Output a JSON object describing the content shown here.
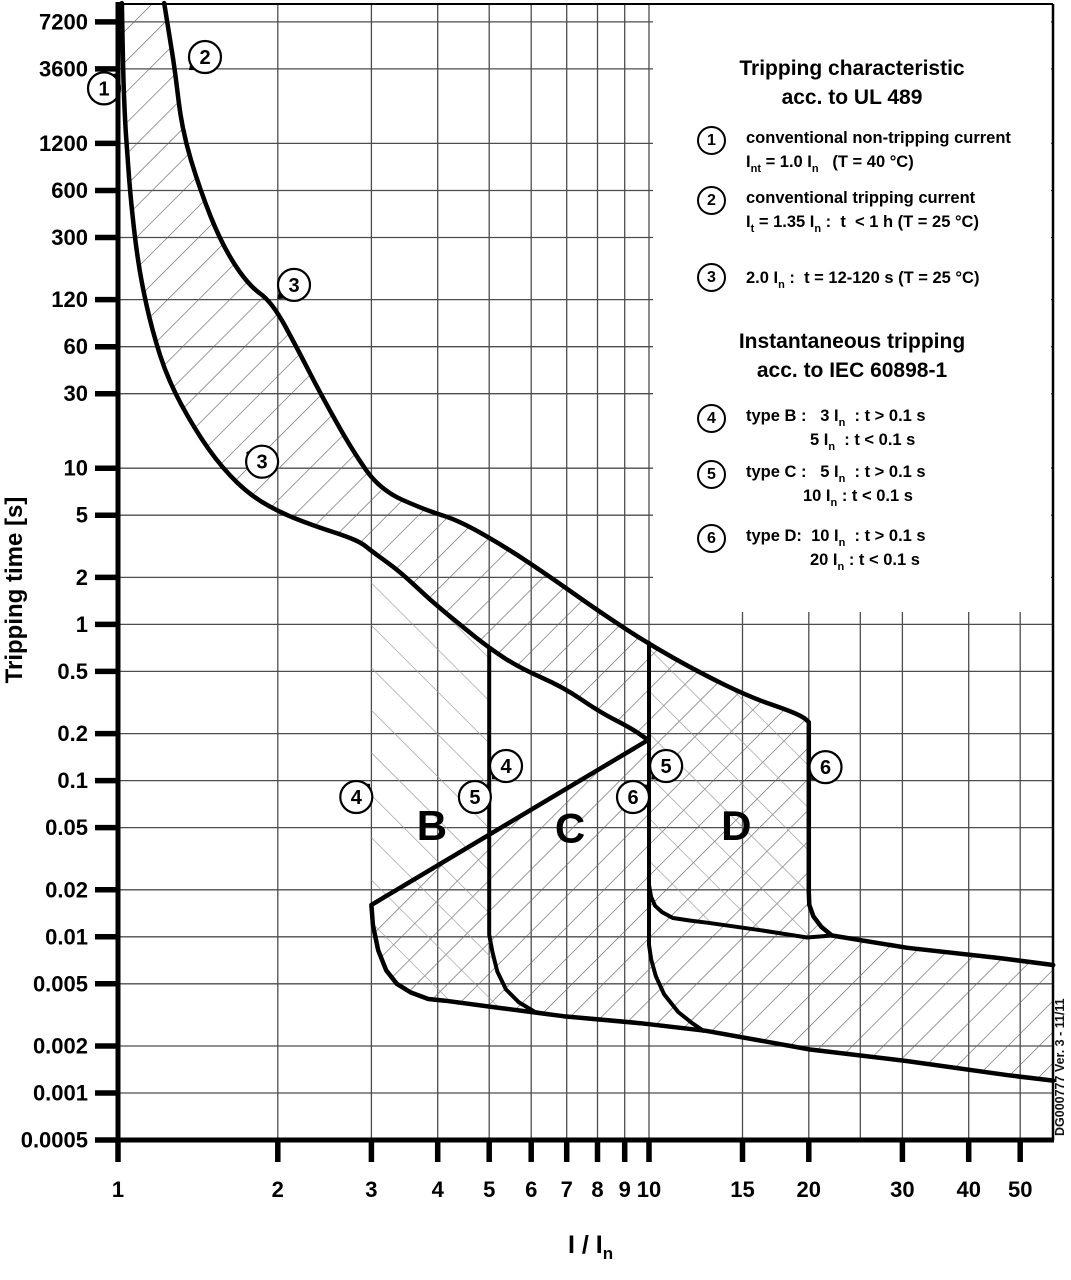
{
  "side_note": "DG000777 Ver. 3 - 11/11",
  "legend": {
    "ul489": {
      "title1": "Tripping characteristic",
      "title2": "acc. to UL 489",
      "items": [
        {
          "num": "1",
          "lines": [
            {
              "segs": [
                {
                  "t": "conventional non-tripping current"
                }
              ]
            },
            {
              "segs": [
                {
                  "t": "I"
                },
                {
                  "s": "nt"
                },
                {
                  "t": " = 1.0 I"
                },
                {
                  "s": "n"
                },
                {
                  "t": "   (T = 40 °C)"
                }
              ]
            }
          ]
        },
        {
          "num": "2",
          "lines": [
            {
              "segs": [
                {
                  "t": "conventional tripping current"
                }
              ]
            },
            {
              "segs": [
                {
                  "t": "I"
                },
                {
                  "s": "t"
                },
                {
                  "t": " = 1.35 I"
                },
                {
                  "s": "n"
                },
                {
                  "t": " :  t  < 1 h (T = 25 °C)"
                }
              ]
            }
          ]
        },
        {
          "num": "3",
          "lines": [
            {
              "segs": [
                {
                  "t": "2.0 I"
                },
                {
                  "s": "n"
                },
                {
                  "t": " :  t = 12-120 s (T = 25 °C)"
                }
              ]
            }
          ]
        }
      ]
    },
    "iec": {
      "title1": "Instantaneous tripping",
      "title2": "acc. to IEC 60898-1",
      "items": [
        {
          "num": "4",
          "lines": [
            {
              "segs": [
                {
                  "t": "type B :   3 I"
                },
                {
                  "s": "n"
                },
                {
                  "t": "  : t > 0.1 s"
                }
              ]
            },
            {
              "pad": 64,
              "segs": [
                {
                  "t": "5 I"
                },
                {
                  "s": "n"
                },
                {
                  "t": "  : t < 0.1 s"
                }
              ]
            }
          ]
        },
        {
          "num": "5",
          "lines": [
            {
              "segs": [
                {
                  "t": "type C :   5 I"
                },
                {
                  "s": "n"
                },
                {
                  "t": "  : t > 0.1 s"
                }
              ]
            },
            {
              "pad": 57,
              "segs": [
                {
                  "t": "10 I"
                },
                {
                  "s": "n"
                },
                {
                  "t": " : t < 0.1 s"
                }
              ]
            }
          ]
        },
        {
          "num": "6",
          "lines": [
            {
              "segs": [
                {
                  "t": "type D:  10 I"
                },
                {
                  "s": "n"
                },
                {
                  "t": "  : t > 0.1 s"
                }
              ]
            },
            {
              "pad": 64,
              "segs": [
                {
                  "t": "20 I"
                },
                {
                  "s": "n"
                },
                {
                  "t": " : t < 0.1 s"
                }
              ]
            }
          ]
        }
      ]
    }
  },
  "chart_data": {
    "type": "line",
    "title": "Tripping characteristic acc. to UL 489 / Instantaneous tripping acc. to IEC 60898-1",
    "xlabel": "I / I",
    "xlabel_sub": "n",
    "ylabel": "Tripping time [s]",
    "x_scale": "log",
    "y_scale": "log",
    "x_range": [
      1,
      57.7
    ],
    "y_range": [
      0.0005,
      9500
    ],
    "x_ticks": [
      1,
      2,
      3,
      4,
      5,
      6,
      7,
      8,
      9,
      10,
      15,
      20,
      30,
      40,
      50
    ],
    "x_gridlines": [
      2,
      3,
      4,
      5,
      6,
      7,
      8,
      9,
      10,
      15,
      20,
      25,
      30,
      40,
      50
    ],
    "y_ticks": [
      7200,
      3600,
      1200,
      600,
      300,
      120,
      60,
      30,
      10,
      5,
      2,
      1,
      0.5,
      0.2,
      0.1,
      0.05,
      0.02,
      0.01,
      0.005,
      0.002,
      0.001,
      0.0005
    ],
    "colors": {
      "curve": "#000000",
      "grid": "#4d4d4d",
      "hatch_main": "#666666",
      "hatch_overlay": "#999999"
    },
    "series": [
      {
        "name": "thermal-lower-limit",
        "smooth": true,
        "width": 4.5,
        "points": [
          [
            1.017,
            9500
          ],
          [
            1.022,
            3540
          ],
          [
            1.031,
            1690
          ],
          [
            1.04,
            1090
          ],
          [
            1.053,
            604
          ],
          [
            1.077,
            289
          ],
          [
            1.105,
            160
          ],
          [
            1.159,
            76.8
          ],
          [
            1.242,
            36.7
          ],
          [
            1.397,
            17.6
          ],
          [
            1.571,
            10.0
          ],
          [
            1.789,
            6.55
          ],
          [
            2.065,
            5.02
          ],
          [
            2.402,
            4.15
          ],
          [
            2.68,
            3.68
          ],
          [
            2.879,
            3.32
          ],
          [
            3.0,
            2.95
          ],
          [
            3.404,
            2.17
          ],
          [
            3.867,
            1.434
          ],
          [
            4.412,
            0.992
          ],
          [
            5.0,
            0.705
          ],
          [
            5.72,
            0.524
          ],
          [
            6.9,
            0.396
          ],
          [
            8.08,
            0.274
          ],
          [
            9.25,
            0.217
          ],
          [
            9.96,
            0.182
          ]
        ]
      },
      {
        "name": "thermal-upper-limit",
        "smooth": true,
        "width": 4.5,
        "points": [
          [
            1.222,
            9500
          ],
          [
            1.253,
            5510
          ],
          [
            1.28,
            3540
          ],
          [
            1.32,
            1460
          ],
          [
            1.427,
            604
          ],
          [
            1.571,
            268
          ],
          [
            1.757,
            149
          ],
          [
            1.95,
            116
          ],
          [
            2.184,
            57.1
          ],
          [
            2.402,
            30.3
          ],
          [
            2.757,
            13.1
          ],
          [
            3.116,
            7.25
          ],
          [
            3.79,
            5.4
          ],
          [
            4.412,
            4.59
          ],
          [
            5.48,
            2.99
          ],
          [
            6.52,
            2.01
          ],
          [
            8.08,
            1.2
          ],
          [
            9.92,
            0.76
          ],
          [
            12.48,
            0.489
          ],
          [
            15.49,
            0.343
          ],
          [
            18.22,
            0.283
          ],
          [
            19.5,
            0.256
          ],
          [
            20.0,
            0.237
          ]
        ]
      },
      {
        "name": "type-B-3In-boundary-and-floor",
        "smooth": false,
        "width": 4.5,
        "points": [
          [
            3.0,
            2.95
          ],
          [
            3.0,
            0.016
          ],
          [
            3.02,
            0.0119
          ],
          [
            3.09,
            0.0082
          ],
          [
            3.2,
            0.0061
          ],
          [
            3.35,
            0.005
          ],
          [
            3.56,
            0.0044
          ],
          [
            3.84,
            0.004
          ],
          [
            4.13,
            0.0039
          ],
          [
            5.24,
            0.0035
          ],
          [
            6.9,
            0.0031
          ],
          [
            9.63,
            0.0028
          ],
          [
            12.8,
            0.0025
          ],
          [
            20.1,
            0.0019
          ],
          [
            30.65,
            0.0016
          ],
          [
            47.4,
            0.0013
          ],
          [
            57.7,
            0.0012
          ]
        ]
      },
      {
        "name": "type-C-5In-boundary",
        "smooth": false,
        "width": 4,
        "points": [
          [
            5.0,
            0.705
          ],
          [
            5.0,
            0.0103
          ],
          [
            5.07,
            0.008
          ],
          [
            5.18,
            0.006
          ],
          [
            5.38,
            0.0046
          ],
          [
            5.69,
            0.0038
          ],
          [
            6.1,
            0.0033
          ],
          [
            6.43,
            0.0032
          ]
        ]
      },
      {
        "name": "type-D-10In-boundary",
        "smooth": false,
        "width": 4,
        "points": [
          [
            10.0,
            0.76
          ],
          [
            10.0,
            0.0089
          ],
          [
            10.09,
            0.0072
          ],
          [
            10.3,
            0.0056
          ],
          [
            10.67,
            0.0043
          ],
          [
            11.35,
            0.0033
          ],
          [
            12.06,
            0.0028
          ],
          [
            12.66,
            0.0025
          ]
        ]
      },
      {
        "name": "type-C-10In-instantaneous-limit",
        "smooth": false,
        "width": 4,
        "points": [
          [
            10.0,
            0.0215
          ],
          [
            10.09,
            0.018
          ],
          [
            10.27,
            0.0158
          ],
          [
            10.58,
            0.0144
          ],
          [
            11.09,
            0.0132
          ],
          [
            11.97,
            0.0127
          ],
          [
            12.92,
            0.0123
          ],
          [
            16.27,
            0.011
          ],
          [
            19.86,
            0.0099
          ],
          [
            22.1,
            0.0102
          ]
        ]
      },
      {
        "name": "type-D-20In-boundary",
        "smooth": false,
        "width": 4.5,
        "points": [
          [
            20.0,
            0.237
          ],
          [
            20.0,
            0.0191
          ],
          [
            20.04,
            0.016
          ],
          [
            20.4,
            0.0135
          ],
          [
            21.1,
            0.0116
          ],
          [
            22.1,
            0.0102
          ]
        ]
      },
      {
        "name": "instantaneous-upper-limit",
        "smooth": false,
        "width": 4.5,
        "points": [
          [
            22.1,
            0.0102
          ],
          [
            30.65,
            0.0085
          ],
          [
            45.8,
            0.0073
          ],
          [
            57.7,
            0.0066
          ]
        ]
      }
    ],
    "region_bands": [
      {
        "label": "B",
        "points": [
          [
            3.0,
            2.95
          ],
          [
            3.0,
            0.016
          ],
          [
            3.02,
            0.0119
          ],
          [
            3.09,
            0.0082
          ],
          [
            3.2,
            0.0061
          ],
          [
            3.35,
            0.005
          ],
          [
            3.56,
            0.0044
          ],
          [
            3.84,
            0.004
          ],
          [
            4.13,
            0.0039
          ],
          [
            5.24,
            0.0035
          ],
          [
            6.43,
            0.0032
          ],
          [
            6.1,
            0.0033
          ],
          [
            5.69,
            0.0038
          ],
          [
            5.38,
            0.0046
          ],
          [
            5.18,
            0.006
          ],
          [
            5.07,
            0.008
          ],
          [
            5.0,
            0.0103
          ],
          [
            5.0,
            0.705
          ],
          [
            4.412,
            0.992
          ],
          [
            3.867,
            1.434
          ],
          [
            3.404,
            2.17
          ]
        ]
      },
      {
        "label": "D",
        "points": [
          [
            9.92,
            0.76
          ],
          [
            12.48,
            0.489
          ],
          [
            15.49,
            0.343
          ],
          [
            18.22,
            0.283
          ],
          [
            19.5,
            0.256
          ],
          [
            20.0,
            0.237
          ],
          [
            20.0,
            0.0191
          ],
          [
            20.04,
            0.016
          ],
          [
            20.4,
            0.0135
          ],
          [
            21.1,
            0.0116
          ],
          [
            22.1,
            0.0102
          ],
          [
            19.86,
            0.0099
          ],
          [
            16.27,
            0.011
          ],
          [
            12.92,
            0.0123
          ],
          [
            11.97,
            0.0127
          ],
          [
            11.09,
            0.0132
          ],
          [
            10.58,
            0.0144
          ],
          [
            10.27,
            0.0158
          ],
          [
            10.09,
            0.018
          ],
          [
            10.0,
            0.0215
          ],
          [
            10.0,
            0.76
          ]
        ]
      }
    ],
    "region_labels": [
      {
        "text": "B",
        "at": [
          3.9,
          0.052
        ]
      },
      {
        "text": "C",
        "at": [
          7.1,
          0.05
        ]
      },
      {
        "text": "D",
        "at": [
          14.6,
          0.052
        ]
      }
    ],
    "markers": [
      {
        "label": "1",
        "at": [
          0.941,
          2700
        ],
        "tip": [
          1.004,
          3390
        ]
      },
      {
        "label": "2",
        "at": [
          1.458,
          4290
        ],
        "tip": [
          1.361,
          3540
        ]
      },
      {
        "label": "3",
        "at": [
          2.145,
          149
        ],
        "tip": [
          1.994,
          121
        ]
      },
      {
        "label": "3",
        "at": [
          1.868,
          11.0
        ],
        "tip": [
          1.744,
          12.7
        ]
      },
      {
        "label": "4",
        "at": [
          2.81,
          0.0785
        ],
        "tip": [
          2.982,
          0.0953
        ]
      },
      {
        "label": "4",
        "at": [
          5.38,
          0.124
        ],
        "tip": [
          5.06,
          0.102
        ]
      },
      {
        "label": "5",
        "at": [
          4.7,
          0.0785
        ],
        "tip": [
          4.99,
          0.0939
        ]
      },
      {
        "label": "5",
        "at": [
          10.77,
          0.124
        ],
        "tip": [
          10.1,
          0.102
        ]
      },
      {
        "label": "6",
        "at": [
          9.33,
          0.0785
        ],
        "tip": [
          9.94,
          0.0939
        ]
      },
      {
        "label": "6",
        "at": [
          21.5,
          0.122
        ],
        "tip": [
          20.2,
          0.101
        ]
      }
    ]
  }
}
